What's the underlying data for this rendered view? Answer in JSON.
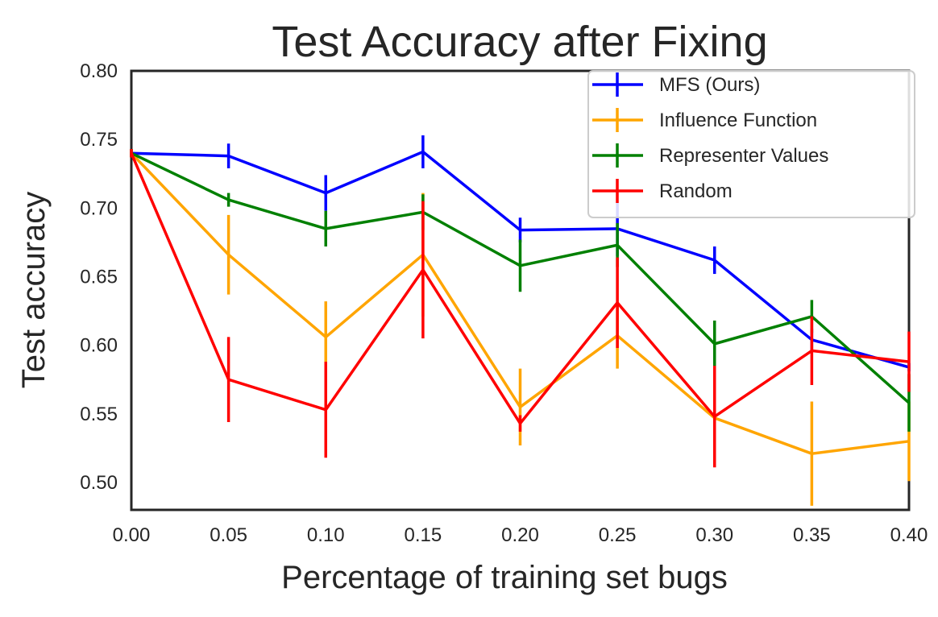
{
  "chart_data": {
    "type": "line",
    "title": "Test Accuracy after Fixing",
    "xlabel": "Percentage of training set bugs",
    "ylabel": "Test accuracy",
    "xlim": [
      0.0,
      0.4
    ],
    "ylim": [
      0.48,
      0.8
    ],
    "xticks": [
      "0.00",
      "0.05",
      "0.10",
      "0.15",
      "0.20",
      "0.25",
      "0.30",
      "0.35",
      "0.40"
    ],
    "yticks": [
      "0.50",
      "0.55",
      "0.60",
      "0.65",
      "0.70",
      "0.75",
      "0.80"
    ],
    "legend_position": "top-right",
    "grid": false,
    "x": [
      0.0,
      0.05,
      0.1,
      0.15,
      0.2,
      0.25,
      0.3,
      0.35,
      0.4
    ],
    "series": [
      {
        "name": "MFS (Ours)",
        "color": "#0000ff",
        "values": [
          0.74,
          0.738,
          0.711,
          0.741,
          0.684,
          0.685,
          0.662,
          0.604,
          0.584
        ],
        "errors": [
          0.003,
          0.009,
          0.013,
          0.012,
          0.009,
          0.02,
          0.01,
          0.008,
          0.003
        ]
      },
      {
        "name": "Influence Function",
        "color": "#ffa500",
        "values": [
          0.74,
          0.666,
          0.606,
          0.666,
          0.555,
          0.607,
          0.547,
          0.521,
          0.53
        ],
        "errors": [
          0.003,
          0.029,
          0.026,
          0.045,
          0.028,
          0.024,
          0.012,
          0.038,
          0.029
        ]
      },
      {
        "name": "Representer Values",
        "color": "#008000",
        "values": [
          0.74,
          0.706,
          0.685,
          0.697,
          0.658,
          0.673,
          0.601,
          0.621,
          0.558
        ],
        "errors": [
          0.003,
          0.005,
          0.013,
          0.013,
          0.019,
          0.016,
          0.017,
          0.012,
          0.021
        ]
      },
      {
        "name": "Random",
        "color": "#ff0000",
        "values": [
          0.74,
          0.575,
          0.553,
          0.655,
          0.543,
          0.631,
          0.548,
          0.596,
          0.588
        ],
        "errors": [
          0.003,
          0.031,
          0.035,
          0.05,
          0.006,
          0.033,
          0.037,
          0.025,
          0.022
        ]
      }
    ]
  }
}
